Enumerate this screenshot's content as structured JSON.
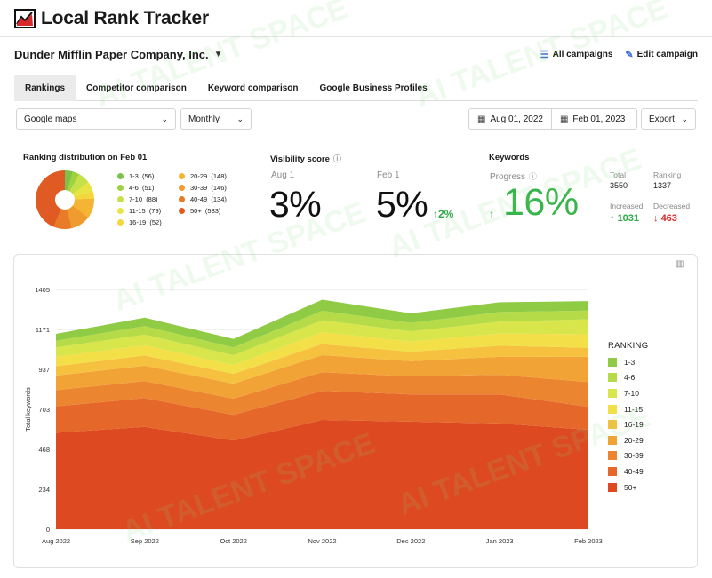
{
  "app": {
    "title": "Local Rank Tracker",
    "logo_icon": "line-chart-logo-icon"
  },
  "company": {
    "name": "Dunder Mifflin Paper Company, Inc."
  },
  "header_actions": {
    "all_campaigns": "All campaigns",
    "edit_campaign": "Edit campaign"
  },
  "tabs": [
    {
      "label": "Rankings",
      "active": true
    },
    {
      "label": "Competitor comparison",
      "active": false
    },
    {
      "label": "Keyword comparison",
      "active": false
    },
    {
      "label": "Google Business Profiles",
      "active": false
    }
  ],
  "filters": {
    "source": "Google maps",
    "period": "Monthly",
    "date_from": "Aug 01, 2022",
    "date_to": "Feb 01, 2023",
    "export": "Export"
  },
  "distribution": {
    "title": "Ranking distribution on Feb 01",
    "items": [
      {
        "range": "1-3",
        "count": "(56)",
        "value": 56,
        "color": "#7cc24a"
      },
      {
        "range": "4-6",
        "count": "(51)",
        "value": 51,
        "color": "#9fd23e"
      },
      {
        "range": "7-10",
        "count": "(88)",
        "value": 88,
        "color": "#c5e048"
      },
      {
        "range": "11-15",
        "count": "(79)",
        "value": 79,
        "color": "#e8e445"
      },
      {
        "range": "16-19",
        "count": "(52)",
        "value": 52,
        "color": "#f5d63c"
      },
      {
        "range": "20-29",
        "count": "(148)",
        "value": 148,
        "color": "#f4b535"
      },
      {
        "range": "30-39",
        "count": "(146)",
        "value": 146,
        "color": "#ef9b2e"
      },
      {
        "range": "40-49",
        "count": "(134)",
        "value": 134,
        "color": "#e87a28"
      },
      {
        "range": "50+",
        "count": "(583)",
        "value": 583,
        "color": "#df5b23"
      }
    ]
  },
  "visibility": {
    "title": "Visibility score",
    "aug_label": "Aug 1",
    "aug_value": "3%",
    "feb_label": "Feb 1",
    "feb_value": "5%",
    "delta": "2%"
  },
  "keywords": {
    "title": "Keywords",
    "progress_label": "Progress",
    "progress_value": "16%",
    "total_label": "Total",
    "total_value": "3550",
    "ranking_label": "Ranking",
    "ranking_value": "1337",
    "increased_label": "Increased",
    "increased_value": "1031",
    "decreased_label": "Decreased",
    "decreased_value": "463"
  },
  "chart_data": {
    "type": "area",
    "stacked": true,
    "x": [
      "Aug 2022",
      "Sep 2022",
      "Oct 2022",
      "Nov 2022",
      "Dec 2022",
      "Jan 2023",
      "Feb 2023"
    ],
    "ylabel": "Total keywords",
    "yticks": [
      0,
      234,
      468,
      703,
      937,
      1171,
      1405
    ],
    "ylim": [
      0,
      1405
    ],
    "legend_title": "RANKING",
    "legend_position": "right",
    "grid": true,
    "series": [
      {
        "name": "50+",
        "color": "#dd4a22",
        "values": [
          565,
          600,
          520,
          640,
          630,
          620,
          583
        ]
      },
      {
        "name": "40-49",
        "color": "#e5672a",
        "values": [
          155,
          168,
          150,
          170,
          160,
          170,
          134
        ]
      },
      {
        "name": "30-39",
        "color": "#ec8530",
        "values": [
          95,
          100,
          95,
          110,
          105,
          115,
          146
        ]
      },
      {
        "name": "20-29",
        "color": "#f2a336",
        "values": [
          85,
          90,
          88,
          100,
          90,
          105,
          148
        ]
      },
      {
        "name": "16-19",
        "color": "#f6c13e",
        "values": [
          55,
          60,
          57,
          65,
          55,
          65,
          52
        ]
      },
      {
        "name": "11-15",
        "color": "#f3df48",
        "values": [
          55,
          60,
          52,
          70,
          60,
          72,
          79
        ]
      },
      {
        "name": "7-10",
        "color": "#d8e64c",
        "values": [
          55,
          62,
          58,
          70,
          60,
          70,
          88
        ]
      },
      {
        "name": "4-6",
        "color": "#b5db48",
        "values": [
          40,
          50,
          45,
          55,
          50,
          56,
          51
        ]
      },
      {
        "name": "1-3",
        "color": "#8fcb45",
        "values": [
          40,
          50,
          50,
          65,
          55,
          57,
          56
        ]
      }
    ]
  }
}
